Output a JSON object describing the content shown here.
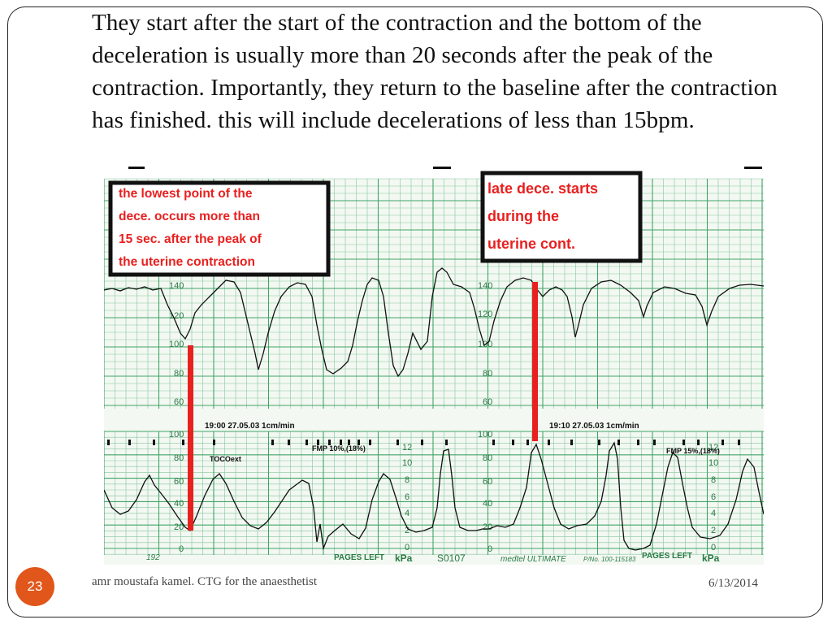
{
  "slide": {
    "body_text": "They start after the start of the contraction and the bottom of the deceleration is usually more than 20 seconds after the peak of the contraction. Importantly, they return to the baseline after the contraction has finished. this will include decelerations of less than 15bpm.",
    "number": "23",
    "footer_author": "amr moustafa kamel. CTG for the anaesthetist",
    "footer_date": "6/13/2014"
  },
  "ctg": {
    "annotation_left": [
      "the lowest point of the",
      "dece. occurs more than",
      "15 sec. after the peak of",
      "the uterine contraction"
    ],
    "annotation_right": [
      "late dece. starts",
      "during the",
      "uterine cont."
    ],
    "fhr_ticks": [
      "140",
      "120",
      "100",
      "80",
      "60"
    ],
    "fhr_ticks_right": [
      "140",
      "120",
      "100",
      "80",
      "60"
    ],
    "toco_ticks": [
      "100",
      "80",
      "60",
      "40",
      "20",
      "0"
    ],
    "toco_ticks_right": [
      "100",
      "80",
      "60",
      "40",
      "20",
      "0"
    ],
    "kpa_ticks": [
      "12",
      "10",
      "8",
      "6",
      "4",
      "2",
      "0"
    ],
    "kpa_ticks_right": [
      "12",
      "10",
      "8",
      "6",
      "4",
      "2",
      "0"
    ],
    "trace_header_left": "19:00  27.05.03  1cm/min",
    "trace_header_right": "19:10  27.05.03  1cm/min",
    "toco_label": "TOCOext",
    "fmp_left": "FMP  10%,(18%)",
    "fmp_right": "FMP  15%,(18%)",
    "bottom_labels": {
      "page_num": "192",
      "pages_left_1": "PAGES LEFT",
      "kpa_1": "kPa",
      "serial": "S0107",
      "brand": "medtel ULTIMATE",
      "pn": "P/No. 100-115183",
      "pages_left_2": "PAGES LEFT",
      "kpa_2": "kPa"
    },
    "colors": {
      "grid": "#2f9b5a",
      "paper": "#f3f8f2",
      "trace": "#111111",
      "marker": "#e8201f",
      "annotation_text": "#e8201f"
    }
  }
}
